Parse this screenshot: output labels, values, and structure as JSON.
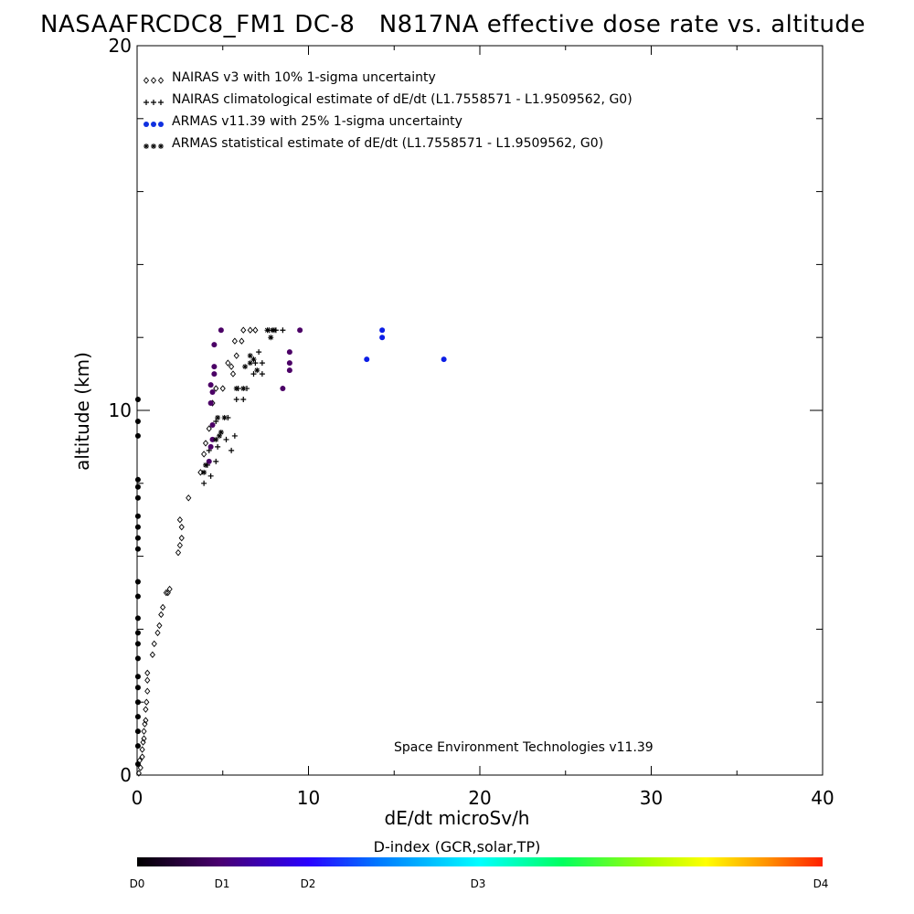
{
  "header": {
    "title": "NASAAFRCDC8_FM1 DC-8   N817NA effective dose rate vs. altitude"
  },
  "credit": "Space Environment Technologies v11.39",
  "legend": [
    {
      "marker": "diamond",
      "label": "NAIRAS v3 with 10% 1-sigma uncertainty"
    },
    {
      "marker": "plus",
      "label": "NAIRAS climatological estimate of dE/dt (L1.7558571 - L1.9509562, G0)"
    },
    {
      "marker": "dot",
      "label": "ARMAS v11.39 with 25% 1-sigma uncertainty"
    },
    {
      "marker": "asterisk",
      "label": "ARMAS statistical estimate of dE/dt (L1.7558571 - L1.9509562, G0)"
    }
  ],
  "colorbar": {
    "title": "D-index (GCR,solar,TP)",
    "ticks": [
      "D0",
      "D1",
      "D2",
      "D3",
      "D4"
    ]
  },
  "colors": {
    "d0": "#000000",
    "d1": "#4b0066",
    "d2": "#0c1ee6",
    "armas_blue": "#1030e0"
  },
  "chart_data": {
    "type": "scatter",
    "xlabel": "dE/dt microSv/h",
    "ylabel": "altitude (km)",
    "xlim": [
      0,
      40
    ],
    "ylim": [
      0,
      20
    ],
    "xticks": [
      "0",
      "10",
      "20",
      "30",
      "40"
    ],
    "yticks": [
      "0",
      "10",
      "20"
    ],
    "grid": false,
    "legend_position": "top-left",
    "series": [
      {
        "name": "NAIRAS v3 with 10% 1-sigma uncertainty",
        "marker": "diamond",
        "points": [
          [
            0.1,
            0.05
          ],
          [
            0.2,
            0.2
          ],
          [
            0.15,
            0.4
          ],
          [
            0.3,
            0.5
          ],
          [
            0.3,
            0.7
          ],
          [
            0.35,
            0.9
          ],
          [
            0.4,
            1.0
          ],
          [
            0.4,
            1.2
          ],
          [
            0.45,
            1.4
          ],
          [
            0.5,
            1.5
          ],
          [
            0.5,
            1.8
          ],
          [
            0.55,
            2.0
          ],
          [
            0.6,
            2.3
          ],
          [
            0.6,
            2.6
          ],
          [
            0.6,
            2.8
          ],
          [
            0.9,
            3.3
          ],
          [
            1.0,
            3.6
          ],
          [
            1.2,
            3.9
          ],
          [
            1.3,
            4.1
          ],
          [
            1.4,
            4.4
          ],
          [
            1.5,
            4.6
          ],
          [
            1.7,
            5.0
          ],
          [
            1.8,
            5.0
          ],
          [
            1.9,
            5.1
          ],
          [
            2.4,
            6.1
          ],
          [
            2.5,
            6.3
          ],
          [
            2.6,
            6.5
          ],
          [
            2.6,
            6.8
          ],
          [
            2.5,
            7.0
          ],
          [
            3.0,
            7.6
          ],
          [
            3.7,
            8.3
          ],
          [
            3.9,
            8.8
          ],
          [
            4.0,
            9.1
          ],
          [
            4.2,
            9.5
          ],
          [
            4.4,
            10.2
          ],
          [
            4.6,
            10.6
          ],
          [
            5.0,
            10.6
          ],
          [
            5.3,
            11.3
          ],
          [
            5.5,
            11.2
          ],
          [
            5.6,
            11.0
          ],
          [
            5.8,
            11.5
          ],
          [
            6.1,
            11.9
          ],
          [
            5.7,
            11.9
          ],
          [
            6.2,
            12.2
          ],
          [
            6.6,
            12.2
          ],
          [
            6.9,
            12.2
          ]
        ]
      },
      {
        "name": "NAIRAS climatological estimate of dE/dt (L1.7558571 - L1.9509562, G0)",
        "marker": "plus",
        "points": [
          [
            3.9,
            8.0
          ],
          [
            4.3,
            8.2
          ],
          [
            4.1,
            8.5
          ],
          [
            4.6,
            8.6
          ],
          [
            4.2,
            8.9
          ],
          [
            4.7,
            9.0
          ],
          [
            5.5,
            8.9
          ],
          [
            5.2,
            9.2
          ],
          [
            5.7,
            9.3
          ],
          [
            4.6,
            9.7
          ],
          [
            5.3,
            9.8
          ],
          [
            5.8,
            10.3
          ],
          [
            6.2,
            10.3
          ],
          [
            5.9,
            10.6
          ],
          [
            6.4,
            10.6
          ],
          [
            6.8,
            11.0
          ],
          [
            7.3,
            11.0
          ],
          [
            6.9,
            11.3
          ],
          [
            7.3,
            11.3
          ],
          [
            7.1,
            11.6
          ],
          [
            7.7,
            12.2
          ],
          [
            8.1,
            12.2
          ],
          [
            8.5,
            12.2
          ]
        ]
      },
      {
        "name": "ARMAS v11.39 with 25% 1-sigma uncertainty",
        "marker": "dot",
        "points": [
          {
            "x": 0.05,
            "y": 0.3,
            "d": 0.0
          },
          {
            "x": 0.05,
            "y": 0.8,
            "d": 0.0
          },
          {
            "x": 0.05,
            "y": 1.2,
            "d": 0.0
          },
          {
            "x": 0.05,
            "y": 1.6,
            "d": 0.0
          },
          {
            "x": 0.05,
            "y": 2.0,
            "d": 0.0
          },
          {
            "x": 0.05,
            "y": 2.4,
            "d": 0.0
          },
          {
            "x": 0.05,
            "y": 2.7,
            "d": 0.0
          },
          {
            "x": 0.05,
            "y": 3.2,
            "d": 0.0
          },
          {
            "x": 0.05,
            "y": 3.6,
            "d": 0.0
          },
          {
            "x": 0.05,
            "y": 3.9,
            "d": 0.0
          },
          {
            "x": 0.05,
            "y": 4.3,
            "d": 0.0
          },
          {
            "x": 0.05,
            "y": 4.9,
            "d": 0.0
          },
          {
            "x": 0.05,
            "y": 5.3,
            "d": 0.0
          },
          {
            "x": 0.05,
            "y": 6.2,
            "d": 0.0
          },
          {
            "x": 0.05,
            "y": 6.5,
            "d": 0.0
          },
          {
            "x": 0.05,
            "y": 6.8,
            "d": 0.0
          },
          {
            "x": 0.05,
            "y": 7.1,
            "d": 0.0
          },
          {
            "x": 0.05,
            "y": 7.6,
            "d": 0.0
          },
          {
            "x": 0.05,
            "y": 7.9,
            "d": 0.0
          },
          {
            "x": 0.05,
            "y": 8.1,
            "d": 0.0
          },
          {
            "x": 0.05,
            "y": 9.3,
            "d": 0.0
          },
          {
            "x": 0.05,
            "y": 9.7,
            "d": 0.0
          },
          {
            "x": 0.05,
            "y": 10.3,
            "d": 0.0
          },
          {
            "x": 4.2,
            "y": 8.6,
            "d": 0.9
          },
          {
            "x": 4.3,
            "y": 9.0,
            "d": 0.9
          },
          {
            "x": 4.4,
            "y": 9.2,
            "d": 0.9
          },
          {
            "x": 4.4,
            "y": 9.6,
            "d": 0.9
          },
          {
            "x": 4.3,
            "y": 10.2,
            "d": 0.9
          },
          {
            "x": 4.4,
            "y": 10.5,
            "d": 0.9
          },
          {
            "x": 4.3,
            "y": 10.7,
            "d": 0.9
          },
          {
            "x": 4.5,
            "y": 11.0,
            "d": 0.9
          },
          {
            "x": 4.5,
            "y": 11.2,
            "d": 0.9
          },
          {
            "x": 4.5,
            "y": 11.8,
            "d": 0.9
          },
          {
            "x": 4.9,
            "y": 12.2,
            "d": 0.9
          },
          {
            "x": 8.5,
            "y": 10.6,
            "d": 0.9
          },
          {
            "x": 8.9,
            "y": 11.1,
            "d": 0.9
          },
          {
            "x": 8.9,
            "y": 11.3,
            "d": 0.9
          },
          {
            "x": 8.9,
            "y": 11.6,
            "d": 0.9
          },
          {
            "x": 9.5,
            "y": 12.2,
            "d": 0.9
          },
          {
            "x": 13.4,
            "y": 11.4,
            "d": 1.9
          },
          {
            "x": 14.3,
            "y": 12.0,
            "d": 1.9
          },
          {
            "x": 14.3,
            "y": 12.2,
            "d": 1.9
          },
          {
            "x": 17.9,
            "y": 11.4,
            "d": 1.9
          }
        ]
      },
      {
        "name": "ARMAS statistical estimate of dE/dt (L1.7558571 - L1.9509562, G0)",
        "marker": "asterisk",
        "points": [
          [
            3.9,
            8.3
          ],
          [
            4.0,
            8.5
          ],
          [
            4.6,
            9.2
          ],
          [
            4.8,
            9.3
          ],
          [
            4.9,
            9.4
          ],
          [
            4.7,
            9.8
          ],
          [
            5.1,
            9.8
          ],
          [
            5.8,
            10.6
          ],
          [
            6.2,
            10.6
          ],
          [
            6.3,
            11.2
          ],
          [
            6.6,
            11.3
          ],
          [
            6.8,
            11.4
          ],
          [
            6.6,
            11.5
          ],
          [
            7.0,
            11.1
          ],
          [
            7.6,
            12.2
          ],
          [
            7.9,
            12.2
          ],
          [
            8.0,
            12.2
          ],
          [
            7.8,
            12.0
          ]
        ]
      }
    ]
  }
}
